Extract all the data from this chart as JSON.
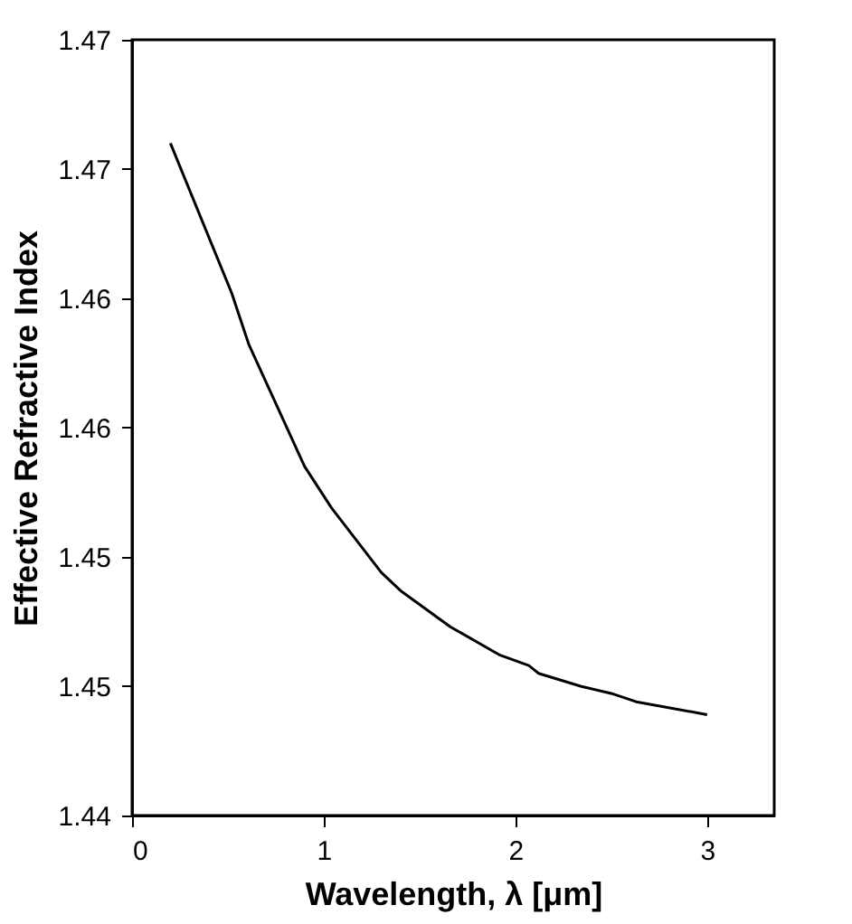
{
  "chart_data": {
    "type": "line",
    "xlabel": "Wavelength, λ [μm]",
    "ylabel": "Effective Refractive Index",
    "x": [
      0.2,
      0.52,
      0.61,
      0.9,
      1.04,
      1.3,
      1.4,
      1.66,
      1.92,
      2.07,
      2.12,
      2.34,
      2.51,
      2.63,
      3.0
    ],
    "series": [
      {
        "color": "#000000",
        "values": [
          1.466,
          1.4602,
          1.4582,
          1.4535,
          1.4519,
          1.4494,
          1.4487,
          1.4473,
          1.4462,
          1.4458,
          1.4455,
          1.445,
          1.4447,
          1.4444,
          1.4439
        ]
      }
    ],
    "xlim": [
      0,
      3.35
    ],
    "xticks": [
      0,
      1,
      2,
      3
    ],
    "ylim": [
      1.44,
      1.47
    ],
    "yticks": [
      {
        "value": 1.44,
        "label": "1.44"
      },
      {
        "value": 1.445,
        "label": "1.45"
      },
      {
        "value": 1.45,
        "label": "1.45"
      },
      {
        "value": 1.455,
        "label": "1.46"
      },
      {
        "value": 1.46,
        "label": "1.46"
      },
      {
        "value": 1.465,
        "label": "1.47"
      },
      {
        "value": 1.47,
        "label": "1.47"
      }
    ],
    "grid": false,
    "marker": "none",
    "line_style": "solid",
    "legend": false
  }
}
